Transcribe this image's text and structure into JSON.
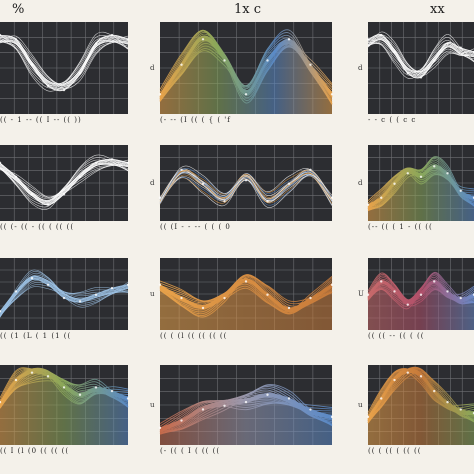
{
  "figure": {
    "col_titles": [
      "%",
      "1x c",
      "xx"
    ]
  },
  "chart_data": [
    {
      "type": "line",
      "panel": 0,
      "style": "wire",
      "colors": [
        "#ffffff"
      ],
      "shape": "dip",
      "x": [
        0,
        1,
        2,
        3,
        4,
        5,
        6,
        7,
        8
      ],
      "y": [
        0.9,
        0.85,
        0.55,
        0.3,
        0.25,
        0.45,
        0.8,
        0.9,
        0.85
      ],
      "ylim": [
        0,
        1
      ],
      "grid": true,
      "tick_text": "(( - 1 -- (( I -- (( ))",
      "y_label": ""
    },
    {
      "type": "area",
      "panel": 1,
      "style": "filled",
      "colors": [
        "#e8a24a",
        "#8aa85a",
        "#5a8ac8",
        "#e8a24a"
      ],
      "shape": "twin-peaks",
      "x": [
        0,
        1,
        2,
        3,
        4,
        5,
        6,
        7,
        8
      ],
      "y": [
        0.2,
        0.55,
        0.85,
        0.6,
        0.2,
        0.6,
        0.85,
        0.55,
        0.2
      ],
      "ylim": [
        0,
        1
      ],
      "grid": true,
      "tick_text": "(- -- (I (( ( { ( 'f",
      "y_label": "d"
    },
    {
      "type": "line",
      "panel": 2,
      "style": "wire",
      "colors": [
        "#ffffff"
      ],
      "shape": "dip",
      "x": [
        0,
        1,
        2,
        3,
        4,
        5,
        6,
        7,
        8
      ],
      "y": [
        0.85,
        0.9,
        0.7,
        0.45,
        0.4,
        0.6,
        0.8,
        0.75,
        0.7
      ],
      "ylim": [
        0,
        1
      ],
      "grid": true,
      "tick_text": "- - c ( ( c c",
      "y_label": "d"
    },
    {
      "type": "line",
      "panel": 3,
      "style": "wire",
      "colors": [
        "#ffffff"
      ],
      "shape": "valley",
      "x": [
        0,
        1,
        2,
        3,
        4,
        5,
        6,
        7,
        8
      ],
      "y": [
        0.8,
        0.6,
        0.35,
        0.2,
        0.35,
        0.6,
        0.8,
        0.85,
        0.8
      ],
      "ylim": [
        0,
        1
      ],
      "grid": true,
      "tick_text": "(( (- (( - (( ( (( ((",
      "y_label": ""
    },
    {
      "type": "line",
      "panel": 4,
      "style": "wire-accent",
      "colors": [
        "#ffffff",
        "#e8a24a",
        "#5a8ac8"
      ],
      "shape": "double-dip",
      "x": [
        0,
        1,
        2,
        3,
        4,
        5,
        6,
        7,
        8
      ],
      "y": [
        0.3,
        0.7,
        0.5,
        0.25,
        0.55,
        0.25,
        0.5,
        0.7,
        0.3
      ],
      "ylim": [
        0,
        1
      ],
      "grid": true,
      "tick_text": "(( (I - - -- ( ( ( 0",
      "y_label": "d"
    },
    {
      "type": "area",
      "panel": 5,
      "style": "filled",
      "colors": [
        "#e8a24a",
        "#8aa85a",
        "#5a8ac8"
      ],
      "shape": "bump",
      "x": [
        0,
        1,
        2,
        3,
        4,
        5,
        6,
        7,
        8
      ],
      "y": [
        0.2,
        0.3,
        0.5,
        0.65,
        0.6,
        0.75,
        0.65,
        0.4,
        0.3
      ],
      "ylim": [
        0,
        1
      ],
      "grid": true,
      "tick_text": "(-- (( ( 1 - (( ((",
      "y_label": "d"
    },
    {
      "type": "line",
      "panel": 6,
      "style": "wire",
      "colors": [
        "#9ec3e6"
      ],
      "shape": "hump",
      "x": [
        0,
        1,
        2,
        3,
        4,
        5,
        6,
        7,
        8
      ],
      "y": [
        0.25,
        0.55,
        0.75,
        0.65,
        0.45,
        0.4,
        0.5,
        0.6,
        0.65
      ],
      "ylim": [
        0,
        1
      ],
      "grid": true,
      "tick_text": "(( (1 (L ( 1 (1 ((",
      "y_label": ""
    },
    {
      "type": "area",
      "panel": 7,
      "style": "filled",
      "colors": [
        "#e8a24a",
        "#c77a3a"
      ],
      "shape": "wave",
      "x": [
        0,
        1,
        2,
        3,
        4,
        5,
        6,
        7,
        8
      ],
      "y": [
        0.65,
        0.45,
        0.3,
        0.45,
        0.7,
        0.5,
        0.3,
        0.45,
        0.65
      ],
      "ylim": [
        0,
        1
      ],
      "grid": true,
      "tick_text": "(( ( (l (( (( (( ((",
      "y_label": "u"
    },
    {
      "type": "area",
      "panel": 8,
      "style": "filled",
      "colors": [
        "#c86a6a",
        "#b0506a",
        "#6a8ac8"
      ],
      "shape": "wave",
      "x": [
        0,
        1,
        2,
        3,
        4,
        5,
        6,
        7,
        8
      ],
      "y": [
        0.5,
        0.7,
        0.55,
        0.35,
        0.5,
        0.7,
        0.55,
        0.45,
        0.5
      ],
      "ylim": [
        0,
        1
      ],
      "grid": true,
      "tick_text": "(( (( -- (( ( ((",
      "y_label": "U"
    },
    {
      "type": "area",
      "panel": 9,
      "style": "filled",
      "colors": [
        "#e8a24a",
        "#8aa85a",
        "#5a8ac8"
      ],
      "shape": "mound",
      "x": [
        0,
        1,
        2,
        3,
        4,
        5,
        6,
        7,
        8
      ],
      "y": [
        0.55,
        0.85,
        0.95,
        0.9,
        0.75,
        0.65,
        0.75,
        0.7,
        0.6
      ],
      "ylim": [
        0,
        1
      ],
      "grid": true,
      "tick_text": "(( I (l (0 (( (( ((",
      "y_label": ""
    },
    {
      "type": "area",
      "panel": 10,
      "style": "filled",
      "colors": [
        "#c86a4a",
        "#9a9ab0",
        "#5a8ac8"
      ],
      "shape": "shoulder",
      "x": [
        0,
        1,
        2,
        3,
        4,
        5,
        6,
        7,
        8
      ],
      "y": [
        0.2,
        0.3,
        0.45,
        0.5,
        0.55,
        0.65,
        0.6,
        0.45,
        0.35
      ],
      "ylim": [
        0,
        1
      ],
      "grid": true,
      "tick_text": "(- (( ( I ( (( ((",
      "y_label": "u"
    },
    {
      "type": "area",
      "panel": 11,
      "style": "filled",
      "colors": [
        "#e8a24a",
        "#c77a3a",
        "#8aa85a"
      ],
      "shape": "mound",
      "x": [
        0,
        1,
        2,
        3,
        4,
        5,
        6,
        7,
        8
      ],
      "y": [
        0.35,
        0.6,
        0.85,
        0.95,
        0.9,
        0.7,
        0.55,
        0.45,
        0.4
      ],
      "ylim": [
        0,
        1
      ],
      "grid": true,
      "tick_text": "(( ( (( ( (( ((",
      "y_label": "u"
    }
  ]
}
